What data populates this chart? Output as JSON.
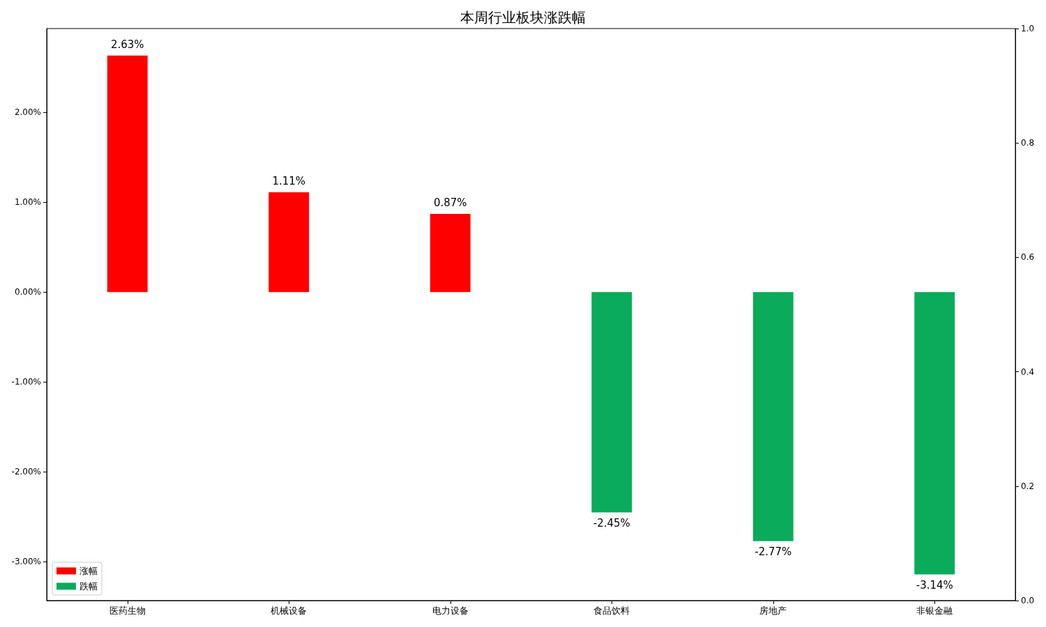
{
  "chart_data": {
    "type": "bar",
    "title": "本周行业板块涨跌幅",
    "categories": [
      "医药生物",
      "机械设备",
      "电力设备",
      "食品饮料",
      "房地产",
      "非银金融"
    ],
    "series": [
      {
        "name": "涨幅",
        "color": "#ff0000",
        "values": [
          2.63,
          1.11,
          0.87,
          null,
          null,
          null
        ],
        "value_labels": [
          "2.63%",
          "1.11%",
          "0.87%",
          null,
          null,
          null
        ]
      },
      {
        "name": "跌幅",
        "color": "#0aab5a",
        "values": [
          null,
          null,
          null,
          -2.45,
          -2.77,
          -3.14
        ],
        "value_labels": [
          null,
          null,
          null,
          "-2.45%",
          "-2.77%",
          "-3.14%"
        ]
      }
    ],
    "ylim": [
      -3.43,
      2.93
    ],
    "yticks": [
      {
        "value": -3,
        "label": "-3.00%"
      },
      {
        "value": -2,
        "label": "-2.00%"
      },
      {
        "value": -1,
        "label": "-1.00%"
      },
      {
        "value": 0,
        "label": "0.00%"
      },
      {
        "value": 1,
        "label": "1.00%"
      },
      {
        "value": 2,
        "label": "2.00%"
      }
    ],
    "y2lim": [
      0,
      1
    ],
    "y2ticks": [
      {
        "value": 0,
        "label": "0.0"
      },
      {
        "value": 0.2,
        "label": "0.2"
      },
      {
        "value": 0.4,
        "label": "0.4"
      },
      {
        "value": 0.6,
        "label": "0.6"
      },
      {
        "value": 0.8,
        "label": "0.8"
      },
      {
        "value": 1,
        "label": "1.0"
      }
    ],
    "legend": "bottom left",
    "grid": false
  }
}
